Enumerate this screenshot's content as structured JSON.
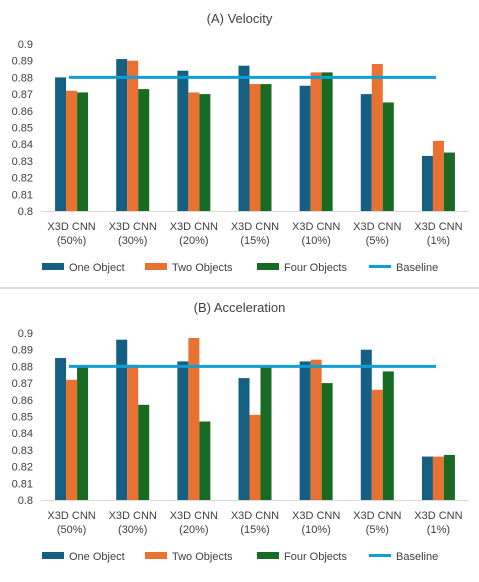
{
  "legend": {
    "position": "bottom",
    "entries": [
      "One Object",
      "Two Objects",
      "Four Objects",
      "Baseline"
    ]
  },
  "colors": {
    "one_object": "#156082",
    "two_objects": "#e97132",
    "four_objects": "#196b24",
    "baseline": "#0f9ed5",
    "grid": "#d9d9d9",
    "text": "#404040"
  },
  "chart_data": [
    {
      "type": "bar",
      "title": "(A) Velocity",
      "xlabel": "",
      "ylabel": "",
      "ylim": [
        0.8,
        0.9
      ],
      "yticks": [
        "0.8",
        "0.81",
        "0.82",
        "0.83",
        "0.84",
        "0.85",
        "0.86",
        "0.87",
        "0.88",
        "0.89",
        "0.9"
      ],
      "grid": false,
      "categories": [
        "X3D CNN (50%)",
        "X3D CNN (30%)",
        "X3D CNN (20%)",
        "X3D CNN (15%)",
        "X3D CNN (10%)",
        "X3D CNN (5%)",
        "X3D CNN (1%)"
      ],
      "category_lines": [
        [
          "X3D CNN",
          "(50%)"
        ],
        [
          "X3D CNN",
          "(30%)"
        ],
        [
          "X3D CNN",
          "(20%)"
        ],
        [
          "X3D CNN",
          "(15%)"
        ],
        [
          "X3D CNN",
          "(10%)"
        ],
        [
          "X3D CNN",
          "(5%)"
        ],
        [
          "X3D CNN",
          "(1%)"
        ]
      ],
      "series": [
        {
          "name": "One Object",
          "values": [
            0.88,
            0.891,
            0.884,
            0.887,
            0.875,
            0.87,
            0.833
          ]
        },
        {
          "name": "Two Objects",
          "values": [
            0.872,
            0.89,
            0.871,
            0.876,
            0.883,
            0.888,
            0.842
          ]
        },
        {
          "name": "Four Objects",
          "values": [
            0.871,
            0.873,
            0.87,
            0.876,
            0.883,
            0.865,
            0.835
          ]
        }
      ],
      "baseline": {
        "name": "Baseline",
        "value": 0.88
      }
    },
    {
      "type": "bar",
      "title": "(B) Acceleration",
      "xlabel": "",
      "ylabel": "",
      "ylim": [
        0.8,
        0.9
      ],
      "yticks": [
        "0.8",
        "0.81",
        "0.82",
        "0.83",
        "0.84",
        "0.85",
        "0.86",
        "0.87",
        "0.88",
        "0.89",
        "0.9"
      ],
      "grid": false,
      "categories": [
        "X3D CNN (50%)",
        "X3D CNN (30%)",
        "X3D CNN (20%)",
        "X3D CNN (15%)",
        "X3D CNN (10%)",
        "X3D CNN (5%)",
        "X3D CNN (1%)"
      ],
      "category_lines": [
        [
          "X3D CNN",
          "(50%)"
        ],
        [
          "X3D CNN",
          "(30%)"
        ],
        [
          "X3D CNN",
          "(20%)"
        ],
        [
          "X3D CNN",
          "(15%)"
        ],
        [
          "X3D CNN",
          "(10%)"
        ],
        [
          "X3D CNN",
          "(5%)"
        ],
        [
          "X3D CNN",
          "(1%)"
        ]
      ],
      "series": [
        {
          "name": "One Object",
          "values": [
            0.885,
            0.896,
            0.883,
            0.873,
            0.883,
            0.89,
            0.826
          ]
        },
        {
          "name": "Two Objects",
          "values": [
            0.872,
            0.881,
            0.897,
            0.851,
            0.884,
            0.866,
            0.826
          ]
        },
        {
          "name": "Four Objects",
          "values": [
            0.88,
            0.857,
            0.847,
            0.88,
            0.87,
            0.877,
            0.827
          ]
        }
      ],
      "baseline": {
        "name": "Baseline",
        "value": 0.88
      }
    }
  ]
}
